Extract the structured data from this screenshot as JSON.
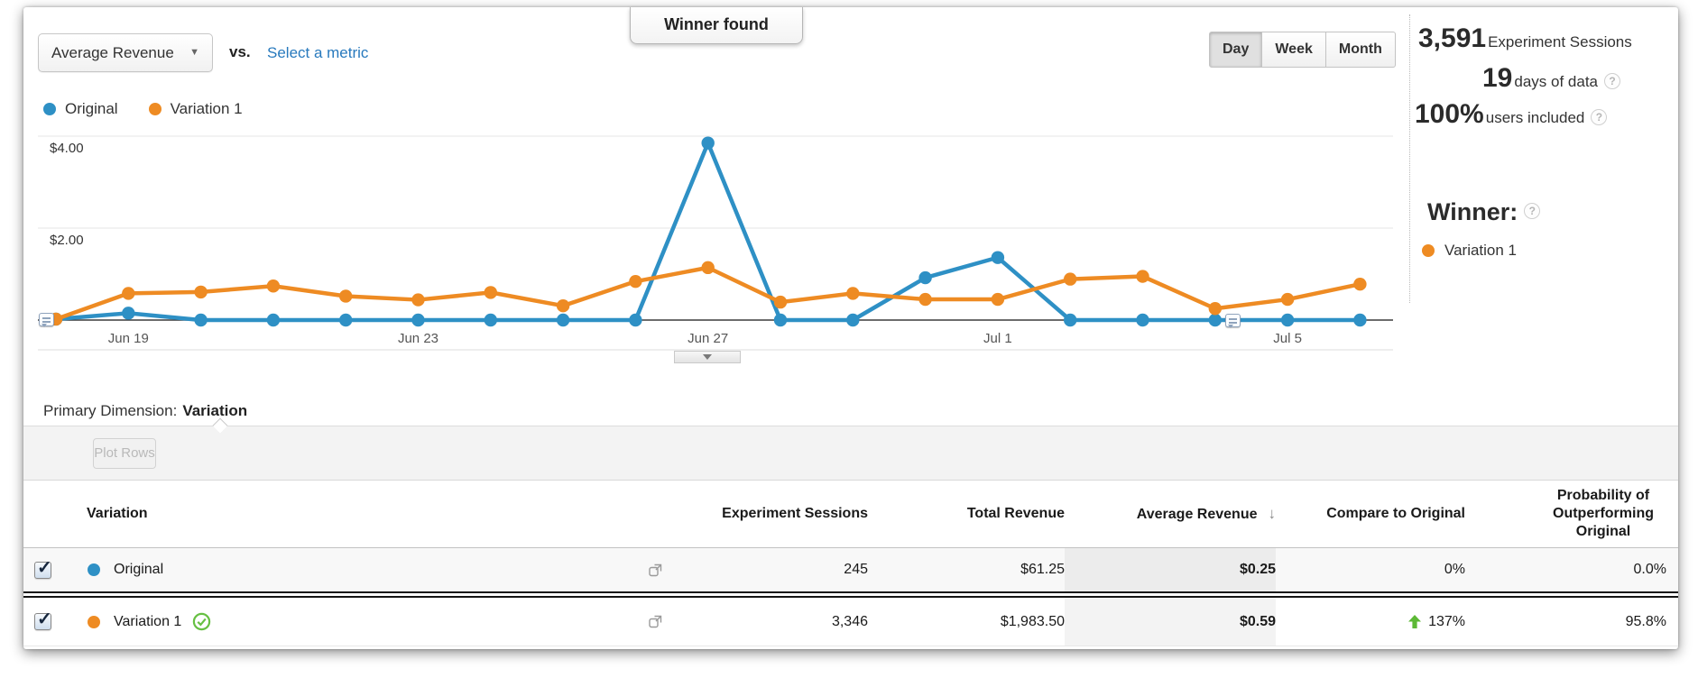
{
  "header": {
    "metric_dropdown": {
      "value": "Average Revenue",
      "caret": "▼"
    },
    "vs_label": "vs.",
    "select_metric_link": "Select a metric",
    "winner_banner": "Winner found",
    "granularity": {
      "options": [
        "Day",
        "Week",
        "Month"
      ],
      "selected": "Day"
    }
  },
  "stats_panel": {
    "sessions": {
      "value": "3,591",
      "label": "Experiment Sessions"
    },
    "days": {
      "value": "19",
      "label": "days of data"
    },
    "users": {
      "value": "100%",
      "label": "users included"
    },
    "winner": {
      "title": "Winner:",
      "name": "Variation 1"
    }
  },
  "icons": {
    "help": "?",
    "check": "✓"
  },
  "chart_data": {
    "type": "line",
    "x": [
      "Jun 18",
      "Jun 19",
      "Jun 20",
      "Jun 21",
      "Jun 22",
      "Jun 23",
      "Jun 24",
      "Jun 25",
      "Jun 26",
      "Jun 27",
      "Jun 28",
      "Jun 29",
      "Jun 30",
      "Jul 1",
      "Jul 2",
      "Jul 3",
      "Jul 4",
      "Jul 5",
      "Jul 6"
    ],
    "tick_indices": [
      1,
      5,
      9,
      13,
      17
    ],
    "series": [
      {
        "name": "Original",
        "color": "#2e90c5",
        "values": [
          0.02,
          0.15,
          0,
          0,
          0,
          0,
          0,
          0,
          0,
          3.85,
          0,
          0,
          0.92,
          1.36,
          0,
          0,
          0,
          0,
          0
        ]
      },
      {
        "name": "Variation 1",
        "color": "#ee8b23",
        "values": [
          0.02,
          0.58,
          0.61,
          0.74,
          0.52,
          0.44,
          0.6,
          0.31,
          0.84,
          1.14,
          0.39,
          0.58,
          0.45,
          0.45,
          0.89,
          0.95,
          0.25,
          0.45,
          0.78
        ]
      }
    ],
    "yticks": [
      {
        "label": "$4.00",
        "value": 4
      },
      {
        "label": "$2.00",
        "value": 2
      }
    ],
    "ylim": [
      0,
      4.4
    ],
    "ylabel": "Average Revenue ($)",
    "grid": "horizontal",
    "annotations": [
      "Jun 18",
      "Jul 4"
    ]
  },
  "primary_dimension": {
    "label": "Primary Dimension:",
    "value": "Variation"
  },
  "toolbar": {
    "plot_rows_label": "Plot Rows"
  },
  "table": {
    "sort_arrow": "↓",
    "columns": {
      "variation": "Variation",
      "sessions": "Experiment Sessions",
      "total_revenue": "Total Revenue",
      "avg_revenue": "Average Revenue",
      "compare": "Compare to Original",
      "probability": "Probability of Outperforming Original"
    },
    "sort_column": "Average Revenue",
    "rows": [
      {
        "name": "Original",
        "checked": true,
        "winner": false,
        "sessions": "245",
        "total_revenue": "$61.25",
        "avg_revenue": "$0.25",
        "compare": "0%",
        "compare_up": false,
        "probability": "0.0%"
      },
      {
        "name": "Variation 1",
        "checked": true,
        "winner": true,
        "sessions": "3,346",
        "total_revenue": "$1,983.50",
        "avg_revenue": "$0.59",
        "compare": "137%",
        "compare_up": true,
        "probability": "95.8%"
      }
    ]
  }
}
